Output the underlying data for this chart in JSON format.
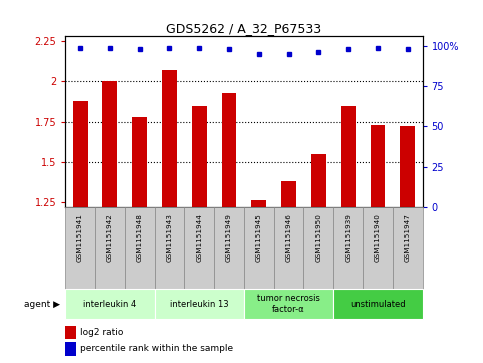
{
  "title": "GDS5262 / A_32_P67533",
  "samples": [
    "GSM1151941",
    "GSM1151942",
    "GSM1151948",
    "GSM1151943",
    "GSM1151944",
    "GSM1151949",
    "GSM1151945",
    "GSM1151946",
    "GSM1151950",
    "GSM1151939",
    "GSM1151940",
    "GSM1151947"
  ],
  "log2_ratio": [
    1.88,
    2.0,
    1.78,
    2.07,
    1.85,
    1.93,
    1.26,
    1.38,
    1.55,
    1.85,
    1.73,
    1.72
  ],
  "percentile_rank": [
    99,
    99,
    98,
    99,
    99,
    98,
    95,
    95,
    96,
    98,
    99,
    98
  ],
  "agents": [
    {
      "label": "interleukin 4",
      "start": 0,
      "end": 3,
      "color": "#ccffcc"
    },
    {
      "label": "interleukin 13",
      "start": 3,
      "end": 6,
      "color": "#ccffcc"
    },
    {
      "label": "tumor necrosis\nfactor-α",
      "start": 6,
      "end": 9,
      "color": "#88ee88"
    },
    {
      "label": "unstimulated",
      "start": 9,
      "end": 12,
      "color": "#44cc44"
    }
  ],
  "bar_color": "#cc0000",
  "dot_color": "#0000cc",
  "ylim_left": [
    1.22,
    2.28
  ],
  "ylim_right": [
    0,
    106
  ],
  "yticks_left": [
    1.25,
    1.5,
    1.75,
    2.0,
    2.25
  ],
  "ytick_labels_left": [
    "1.25",
    "1.5",
    "1.75",
    "2",
    "2.25"
  ],
  "yticks_right": [
    0,
    25,
    50,
    75,
    100
  ],
  "ytick_labels_right": [
    "0",
    "25",
    "50",
    "75",
    "100%"
  ],
  "hlines": [
    1.5,
    1.75,
    2.0
  ],
  "agent_label": "agent",
  "legend_bar_label": "log2 ratio",
  "legend_dot_label": "percentile rank within the sample",
  "bar_width": 0.5,
  "background_color": "#ffffff",
  "sample_box_color": "#cccccc",
  "sample_box_edge": "#888888"
}
